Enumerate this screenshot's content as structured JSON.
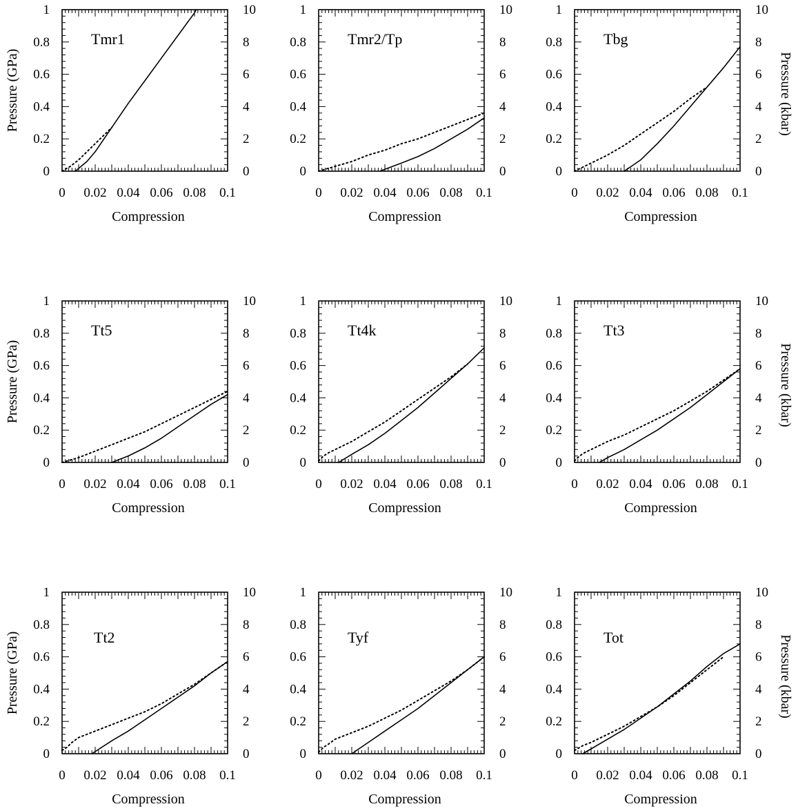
{
  "chart_data": [
    {
      "type": "line",
      "title": "Tmr1",
      "xlabel": "Compression",
      "ylabel_left": "Pressure (GPa)",
      "ylabel_right": "",
      "xlim": [
        0,
        0.1
      ],
      "ylim_left": [
        0,
        1
      ],
      "ylim_right": [
        0,
        10
      ],
      "xticks": [
        "0",
        "0.02",
        "0.04",
        "0.06",
        "0.08",
        "0.1"
      ],
      "yticks_left": [
        "0",
        "0.2",
        "0.4",
        "0.6",
        "0.8",
        "1"
      ],
      "yticks_right": [
        "0",
        "2",
        "4",
        "6",
        "8",
        "10"
      ],
      "series": [
        {
          "style": "solid",
          "x": [
            0.008,
            0.015,
            0.02,
            0.03,
            0.04,
            0.05,
            0.06,
            0.07,
            0.08,
            0.081
          ],
          "y": [
            0,
            0.06,
            0.12,
            0.27,
            0.42,
            0.56,
            0.7,
            0.84,
            0.98,
            1.0
          ]
        },
        {
          "style": "dotted",
          "x": [
            0,
            0.005,
            0.01,
            0.015,
            0.02,
            0.025,
            0.03
          ],
          "y": [
            0,
            0.03,
            0.07,
            0.12,
            0.17,
            0.22,
            0.27
          ]
        }
      ]
    },
    {
      "type": "line",
      "title": "Tmr2/Tp",
      "xlabel": "Compression",
      "ylabel_left": "",
      "ylabel_right": "",
      "xlim": [
        0,
        0.1
      ],
      "ylim_left": [
        0,
        1
      ],
      "ylim_right": [
        0,
        10
      ],
      "xticks": [
        "0",
        "0.02",
        "0.04",
        "0.06",
        "0.08",
        "0.1"
      ],
      "yticks_left": [
        "0",
        "0.2",
        "0.4",
        "0.6",
        "0.8",
        "1"
      ],
      "yticks_right": [
        "0",
        "2",
        "4",
        "6",
        "8",
        "10"
      ],
      "series": [
        {
          "style": "solid",
          "x": [
            0.037,
            0.05,
            0.06,
            0.07,
            0.08,
            0.09,
            0.1
          ],
          "y": [
            0,
            0.05,
            0.09,
            0.14,
            0.2,
            0.26,
            0.33
          ]
        },
        {
          "style": "dotted",
          "x": [
            0,
            0.01,
            0.02,
            0.03,
            0.04,
            0.05,
            0.06,
            0.07,
            0.08,
            0.09,
            0.1
          ],
          "y": [
            0,
            0.03,
            0.06,
            0.1,
            0.13,
            0.17,
            0.2,
            0.24,
            0.28,
            0.32,
            0.36
          ]
        }
      ]
    },
    {
      "type": "line",
      "title": "Tbg",
      "xlabel": "Compression",
      "ylabel_left": "",
      "ylabel_right": "Pressure (kbar)",
      "xlim": [
        0,
        0.1
      ],
      "ylim_left": [
        0,
        1
      ],
      "ylim_right": [
        0,
        10
      ],
      "xticks": [
        "0",
        "0.02",
        "0.04",
        "0.06",
        "0.08",
        "0.1"
      ],
      "yticks_left": [
        "0",
        "0.2",
        "0.4",
        "0.6",
        "0.8",
        "1"
      ],
      "yticks_right": [
        "0",
        "2",
        "4",
        "6",
        "8",
        "10"
      ],
      "series": [
        {
          "style": "solid",
          "x": [
            0.03,
            0.04,
            0.05,
            0.06,
            0.07,
            0.08,
            0.09,
            0.1
          ],
          "y": [
            0,
            0.07,
            0.17,
            0.28,
            0.4,
            0.52,
            0.64,
            0.77
          ]
        },
        {
          "style": "dotted",
          "x": [
            0,
            0.01,
            0.02,
            0.03,
            0.04,
            0.05,
            0.06,
            0.07,
            0.08
          ],
          "y": [
            0,
            0.05,
            0.1,
            0.16,
            0.23,
            0.3,
            0.37,
            0.45,
            0.52
          ]
        }
      ]
    },
    {
      "type": "line",
      "title": "Tt5",
      "xlabel": "Compression",
      "ylabel_left": "Pressure (GPa)",
      "ylabel_right": "",
      "xlim": [
        0,
        0.1
      ],
      "ylim_left": [
        0,
        1
      ],
      "ylim_right": [
        0,
        10
      ],
      "xticks": [
        "0",
        "0.02",
        "0.04",
        "0.06",
        "0.08",
        "0.1"
      ],
      "yticks_left": [
        "0",
        "0.2",
        "0.4",
        "0.6",
        "0.8",
        "1"
      ],
      "yticks_right": [
        "0",
        "2",
        "4",
        "6",
        "8",
        "10"
      ],
      "series": [
        {
          "style": "solid",
          "x": [
            0.03,
            0.04,
            0.05,
            0.06,
            0.07,
            0.08,
            0.09,
            0.1
          ],
          "y": [
            0,
            0.04,
            0.09,
            0.15,
            0.22,
            0.29,
            0.36,
            0.42
          ]
        },
        {
          "style": "dotted",
          "x": [
            0,
            0.01,
            0.02,
            0.03,
            0.04,
            0.05,
            0.06,
            0.07,
            0.08,
            0.09,
            0.1
          ],
          "y": [
            0,
            0.03,
            0.07,
            0.11,
            0.15,
            0.19,
            0.24,
            0.29,
            0.34,
            0.39,
            0.44
          ]
        }
      ]
    },
    {
      "type": "line",
      "title": "Tt4k",
      "xlabel": "Compression",
      "ylabel_left": "",
      "ylabel_right": "",
      "xlim": [
        0,
        0.1
      ],
      "ylim_left": [
        0,
        1
      ],
      "ylim_right": [
        0,
        10
      ],
      "xticks": [
        "0",
        "0.02",
        "0.04",
        "0.06",
        "0.08",
        "0.1"
      ],
      "yticks_left": [
        "0",
        "0.2",
        "0.4",
        "0.6",
        "0.8",
        "1"
      ],
      "yticks_right": [
        "0",
        "2",
        "4",
        "6",
        "8",
        "10"
      ],
      "series": [
        {
          "style": "solid",
          "x": [
            0.012,
            0.02,
            0.03,
            0.04,
            0.05,
            0.06,
            0.07,
            0.08,
            0.09,
            0.1
          ],
          "y": [
            0,
            0.05,
            0.11,
            0.18,
            0.26,
            0.34,
            0.43,
            0.52,
            0.61,
            0.71
          ]
        },
        {
          "style": "dotted",
          "x": [
            0,
            0.003,
            0.006,
            0.01,
            0.02,
            0.03,
            0.04,
            0.05,
            0.06,
            0.07,
            0.08,
            0.09
          ],
          "y": [
            0.01,
            0.04,
            0.06,
            0.08,
            0.13,
            0.19,
            0.25,
            0.32,
            0.39,
            0.46,
            0.53,
            0.61
          ]
        }
      ]
    },
    {
      "type": "line",
      "title": "Tt3",
      "xlabel": "Compression",
      "ylabel_left": "",
      "ylabel_right": "Pressure (kbar)",
      "xlim": [
        0,
        0.1
      ],
      "ylim_left": [
        0,
        1
      ],
      "ylim_right": [
        0,
        10
      ],
      "xticks": [
        "0",
        "0.02",
        "0.04",
        "0.06",
        "0.08",
        "0.1"
      ],
      "yticks_left": [
        "0",
        "0.2",
        "0.4",
        "0.6",
        "0.8",
        "1"
      ],
      "yticks_right": [
        "0",
        "2",
        "4",
        "6",
        "8",
        "10"
      ],
      "series": [
        {
          "style": "solid",
          "x": [
            0.015,
            0.02,
            0.03,
            0.04,
            0.05,
            0.06,
            0.07,
            0.08,
            0.09,
            0.1
          ],
          "y": [
            0,
            0.03,
            0.08,
            0.14,
            0.2,
            0.27,
            0.34,
            0.42,
            0.5,
            0.58
          ]
        },
        {
          "style": "dotted",
          "x": [
            0,
            0.003,
            0.006,
            0.01,
            0.02,
            0.03,
            0.04,
            0.05,
            0.06,
            0.07,
            0.08,
            0.09,
            0.1
          ],
          "y": [
            0.01,
            0.04,
            0.06,
            0.08,
            0.13,
            0.17,
            0.22,
            0.27,
            0.32,
            0.38,
            0.44,
            0.51,
            0.58
          ]
        }
      ]
    },
    {
      "type": "line",
      "title": "Tt2",
      "xlabel": "Compression",
      "ylabel_left": "Pressure (GPa)",
      "ylabel_right": "",
      "xlim": [
        0,
        0.1
      ],
      "ylim_left": [
        0,
        1
      ],
      "ylim_right": [
        0,
        10
      ],
      "xticks": [
        "0",
        "0.02",
        "0.04",
        "0.06",
        "0.08",
        "0.1"
      ],
      "yticks_left": [
        "0",
        "0.2",
        "0.4",
        "0.6",
        "0.8",
        "1"
      ],
      "yticks_right": [
        "0",
        "2",
        "4",
        "6",
        "8",
        "10"
      ],
      "series": [
        {
          "style": "solid",
          "x": [
            0.018,
            0.03,
            0.04,
            0.05,
            0.06,
            0.07,
            0.08,
            0.09,
            0.1
          ],
          "y": [
            0,
            0.08,
            0.14,
            0.21,
            0.28,
            0.35,
            0.42,
            0.5,
            0.57
          ]
        },
        {
          "style": "dotted",
          "x": [
            0,
            0.003,
            0.006,
            0.01,
            0.02,
            0.03,
            0.04,
            0.05,
            0.06,
            0.07,
            0.08,
            0.09,
            0.1
          ],
          "y": [
            0.02,
            0.04,
            0.07,
            0.1,
            0.14,
            0.18,
            0.22,
            0.26,
            0.31,
            0.37,
            0.43,
            0.5,
            0.57
          ]
        }
      ]
    },
    {
      "type": "line",
      "title": "Tyf",
      "xlabel": "Compression",
      "ylabel_left": "",
      "ylabel_right": "",
      "xlim": [
        0,
        0.1
      ],
      "ylim_left": [
        0,
        1
      ],
      "ylim_right": [
        0,
        10
      ],
      "xticks": [
        "0",
        "0.02",
        "0.04",
        "0.06",
        "0.08",
        "0.1"
      ],
      "yticks_left": [
        "0",
        "0.2",
        "0.4",
        "0.6",
        "0.8",
        "1"
      ],
      "yticks_right": [
        "0",
        "2",
        "4",
        "6",
        "8",
        "10"
      ],
      "series": [
        {
          "style": "solid",
          "x": [
            0.02,
            0.03,
            0.04,
            0.05,
            0.06,
            0.07,
            0.08,
            0.09,
            0.1
          ],
          "y": [
            0,
            0.07,
            0.14,
            0.21,
            0.28,
            0.36,
            0.44,
            0.52,
            0.6
          ]
        },
        {
          "style": "dotted",
          "x": [
            0,
            0.003,
            0.006,
            0.01,
            0.02,
            0.03,
            0.04,
            0.05,
            0.06,
            0.07,
            0.08,
            0.09,
            0.1
          ],
          "y": [
            0.01,
            0.04,
            0.06,
            0.09,
            0.13,
            0.17,
            0.22,
            0.27,
            0.33,
            0.39,
            0.45,
            0.52,
            0.6
          ]
        }
      ]
    },
    {
      "type": "line",
      "title": "Tot",
      "xlabel": "Compression",
      "ylabel_left": "",
      "ylabel_right": "Pressure (kbar)",
      "xlim": [
        0,
        0.1
      ],
      "ylim_left": [
        0,
        1
      ],
      "ylim_right": [
        0,
        10
      ],
      "xticks": [
        "0",
        "0.02",
        "0.04",
        "0.06",
        "0.08",
        "0.1"
      ],
      "yticks_left": [
        "0",
        "0.2",
        "0.4",
        "0.6",
        "0.8",
        "1"
      ],
      "yticks_right": [
        "0",
        "2",
        "4",
        "6",
        "8",
        "10"
      ],
      "series": [
        {
          "style": "solid",
          "x": [
            0.005,
            0.01,
            0.02,
            0.03,
            0.04,
            0.05,
            0.06,
            0.07,
            0.08,
            0.09,
            0.1
          ],
          "y": [
            0,
            0.03,
            0.09,
            0.15,
            0.22,
            0.29,
            0.37,
            0.45,
            0.54,
            0.62,
            0.68
          ]
        },
        {
          "style": "dotted",
          "x": [
            0,
            0.005,
            0.01,
            0.02,
            0.03,
            0.04,
            0.05,
            0.06,
            0.07,
            0.08,
            0.09
          ],
          "y": [
            0.02,
            0.05,
            0.07,
            0.12,
            0.17,
            0.23,
            0.29,
            0.36,
            0.44,
            0.52,
            0.6
          ]
        }
      ]
    }
  ]
}
